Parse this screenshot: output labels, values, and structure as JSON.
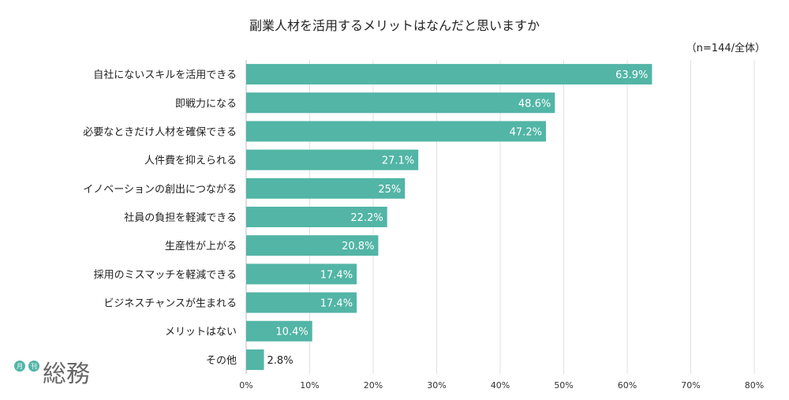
{
  "chart_data": {
    "type": "bar",
    "orientation": "horizontal",
    "title": "副業人材を活用するメリットはなんだと思いますか",
    "note": "（n=144/全体）",
    "categories": [
      "自社にないスキルを活用できる",
      "即戦力になる",
      "必要なときだけ人材を確保できる",
      "人件費を抑えられる",
      "イノベーションの創出につながる",
      "社員の負担を軽減できる",
      "生産性が上がる",
      "採用のミスマッチを軽減できる",
      "ビジネスチャンスが生まれる",
      "メリットはない",
      "その他"
    ],
    "values": [
      63.9,
      48.6,
      47.2,
      27.1,
      25,
      22.2,
      20.8,
      17.4,
      17.4,
      10.4,
      2.8
    ],
    "value_labels": [
      "63.9%",
      "48.6%",
      "47.2%",
      "27.1%",
      "25%",
      "22.2%",
      "20.8%",
      "17.4%",
      "17.4%",
      "10.4%",
      "2.8%"
    ],
    "xlim": [
      0,
      80
    ],
    "x_ticks": [
      0,
      10,
      20,
      30,
      40,
      50,
      60,
      70,
      80
    ],
    "x_tick_labels": [
      "0%",
      "10%",
      "20%",
      "30%",
      "40%",
      "50%",
      "60%",
      "70%",
      "80%"
    ],
    "grid": true,
    "colors": {
      "bar": "#52b5a6",
      "grid": "#e0e0e0",
      "axis": "#bbbbbb"
    }
  },
  "logo": {
    "badges": [
      "月",
      "刊"
    ],
    "mark": "総務",
    "badge_color": "#52b5a6"
  }
}
